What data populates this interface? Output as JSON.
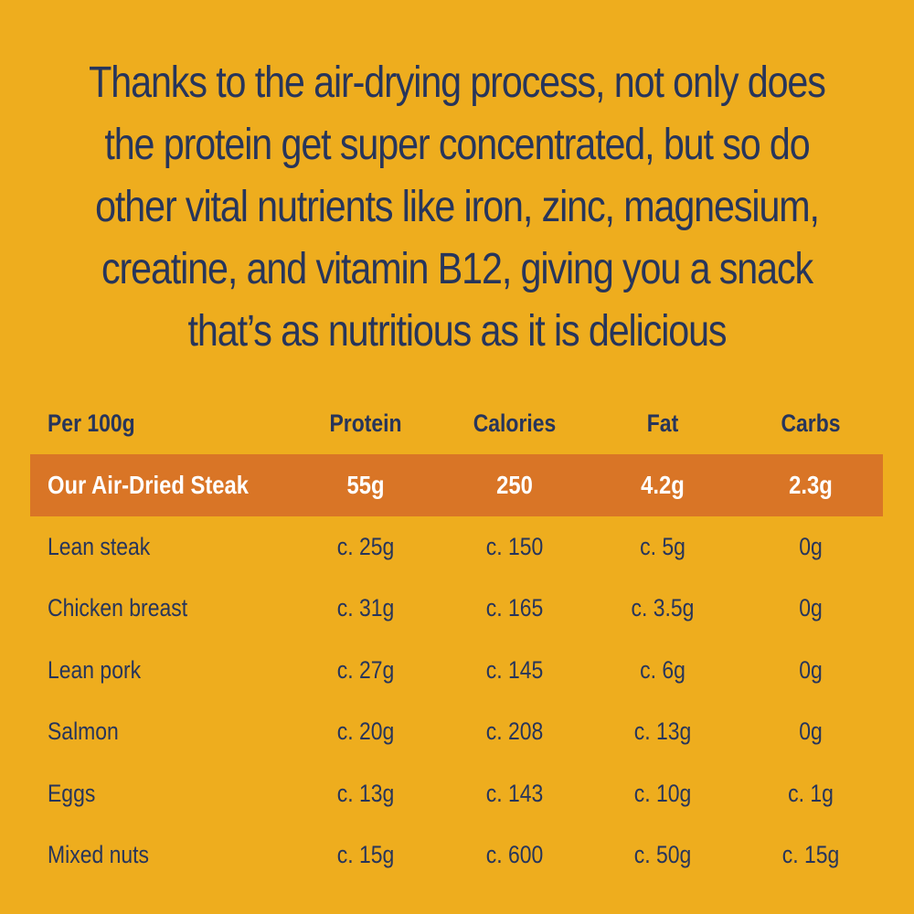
{
  "headline": {
    "line1": "Thanks to the air-drying process, not only does",
    "line2": "the protein get super concentrated, but so do",
    "line3": "other vital nutrients like iron, zinc, magnesium,",
    "line4": "creatine, and vitamin B12, giving you a snack",
    "line5": "that’s as nutritious as it is delicious"
  },
  "table": {
    "headers": [
      "Per 100g",
      "Protein",
      "Calories",
      "Fat",
      "Carbs"
    ],
    "highlight_row": [
      "Our Air-Dried Steak",
      "55g",
      "250",
      "4.2g",
      "2.3g"
    ],
    "rows": [
      [
        "Lean steak",
        "c. 25g",
        "c. 150",
        "c. 5g",
        "0g"
      ],
      [
        "Chicken breast",
        "c. 31g",
        "c. 165",
        "c. 3.5g",
        "0g"
      ],
      [
        "Lean pork",
        "c. 27g",
        "c. 145",
        "c. 6g",
        "0g"
      ],
      [
        "Salmon",
        "c. 20g",
        "c. 208",
        "c. 13g",
        "0g"
      ],
      [
        "Eggs",
        "c. 13g",
        "c. 143",
        "c. 10g",
        "c. 1g"
      ],
      [
        "Mixed nuts",
        "c. 15g",
        "c. 600",
        "c. 50g",
        "c. 15g"
      ]
    ]
  },
  "colors": {
    "background": "#EEAD1E",
    "text": "#27355B",
    "highlight_background": "#D97526",
    "highlight_text": "#FFFFFF"
  }
}
